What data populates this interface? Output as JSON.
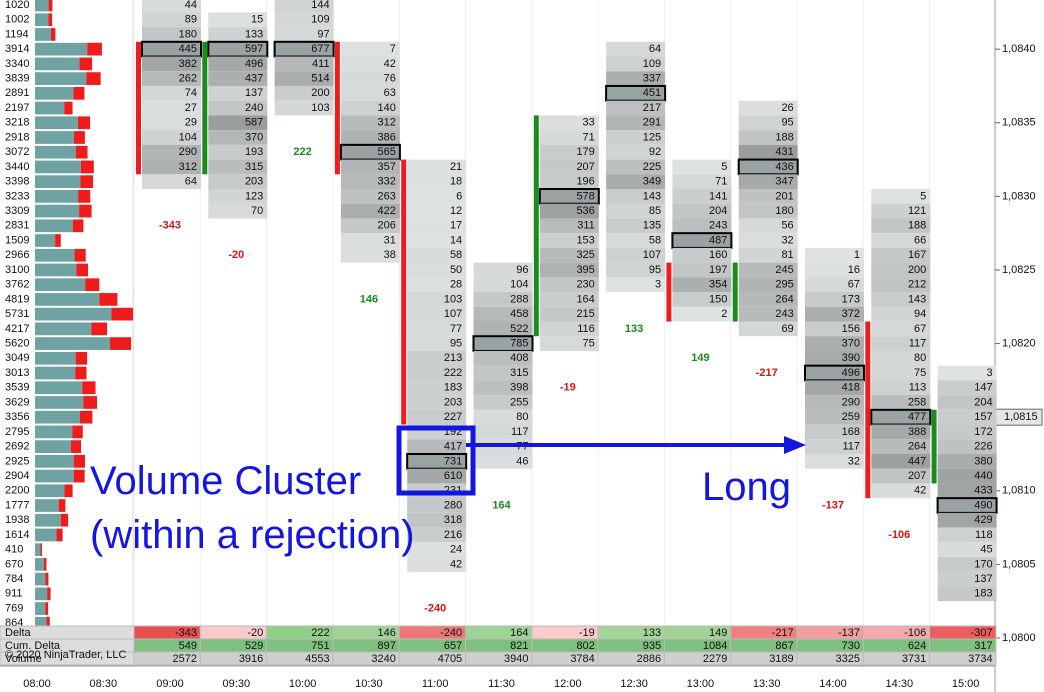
{
  "chart_data": {
    "type": "footprint",
    "ylim": [
      1.08,
      1.0843
    ],
    "row_step": 0.0001,
    "price_axis": {
      "ticks": [
        {
          "value": 1.084,
          "label": "1,0840"
        },
        {
          "value": 1.0835,
          "label": "1,0835"
        },
        {
          "value": 1.083,
          "label": "1,0830"
        },
        {
          "value": 1.0825,
          "label": "1,0825"
        },
        {
          "value": 1.082,
          "label": "1,0820"
        },
        {
          "value": 1.081,
          "label": "1,0810"
        },
        {
          "value": 1.0805,
          "label": "1,0805"
        },
        {
          "value": 1.08,
          "label": "1,0800"
        }
      ],
      "current": {
        "value": 1.0815,
        "label": "1,0815"
      }
    },
    "profile": {
      "first_price": 1.0843,
      "values": [
        1020,
        1002,
        1194,
        3914,
        3340,
        3839,
        2891,
        2197,
        3218,
        2918,
        3072,
        3440,
        3398,
        3233,
        3309,
        2831,
        1509,
        2966,
        3100,
        3762,
        4819,
        5731,
        4217,
        5620,
        3049,
        3013,
        3539,
        3629,
        3356,
        2795,
        2692,
        2925,
        2904,
        2200,
        1777,
        1938,
        1614,
        410,
        670,
        784,
        911,
        769,
        864
      ]
    },
    "x_labels": [
      "08:00",
      "08:30"
    ],
    "columns": [
      {
        "time": "09:00",
        "first_price": 1.0843,
        "values": [
          44,
          89,
          180,
          445,
          382,
          262,
          74,
          27,
          29,
          104,
          290,
          312,
          64
        ],
        "delta": -343,
        "cum_delta": 549,
        "volume": 2572
      },
      {
        "time": "09:30",
        "first_price": 1.0842,
        "values": [
          15,
          133,
          597,
          496,
          437,
          137,
          240,
          587,
          370,
          193,
          315,
          203,
          123,
          70
        ],
        "delta": -20,
        "cum_delta": 529,
        "volume": 3916
      },
      {
        "time": "10:00",
        "first_price": 1.0843,
        "values": [
          144,
          109,
          97,
          677,
          411,
          514,
          200,
          103
        ],
        "delta": 222,
        "cum_delta": 751,
        "volume": 4553
      },
      {
        "time": "10:30",
        "first_price": 1.084,
        "values": [
          7,
          42,
          76,
          63,
          140,
          312,
          386,
          565,
          357,
          332,
          263,
          422,
          206,
          31,
          38
        ],
        "delta": 146,
        "cum_delta": 897,
        "volume": 3240
      },
      {
        "time": "11:00",
        "first_price": 1.0832,
        "values": [
          21,
          18,
          6,
          12,
          17,
          14,
          58,
          50,
          28,
          103,
          107,
          77,
          95,
          213,
          222,
          183,
          203,
          227,
          192,
          417,
          731,
          610,
          231,
          280,
          318,
          216,
          24,
          42
        ],
        "delta": -240,
        "cum_delta": 657,
        "volume": 4705
      },
      {
        "time": "11:30",
        "first_price": 1.0825,
        "values": [
          96,
          104,
          288,
          458,
          522,
          785,
          408,
          315,
          398,
          255,
          80,
          117,
          77,
          46
        ],
        "delta": 164,
        "cum_delta": 821,
        "volume": 3940
      },
      {
        "time": "12:00",
        "first_price": 1.0835,
        "values": [
          33,
          71,
          179,
          207,
          196,
          578,
          536,
          311,
          153,
          325,
          395,
          230,
          164,
          215,
          116,
          75
        ],
        "delta": -19,
        "cum_delta": 802,
        "volume": 3784
      },
      {
        "time": "12:30",
        "first_price": 1.084,
        "values": [
          64,
          109,
          337,
          451,
          217,
          291,
          125,
          92,
          225,
          349,
          143,
          85,
          135,
          58,
          107,
          95,
          3
        ],
        "delta": 133,
        "cum_delta": 935,
        "volume": 2886
      },
      {
        "time": "13:00",
        "first_price": 1.0832,
        "values": [
          5,
          71,
          141,
          204,
          243,
          487,
          160,
          197,
          354,
          150,
          2
        ],
        "delta": 149,
        "cum_delta": 1084,
        "volume": 2279
      },
      {
        "time": "13:30",
        "first_price": 1.0836,
        "values": [
          26,
          95,
          188,
          431,
          436,
          347,
          201,
          180,
          56,
          32,
          81,
          245,
          295,
          264,
          243,
          69
        ],
        "delta": -217,
        "cum_delta": 867,
        "volume": 3189
      },
      {
        "time": "14:00",
        "first_price": 1.0826,
        "values": [
          1,
          16,
          67,
          173,
          372,
          156,
          370,
          390,
          496,
          418,
          290,
          259,
          168,
          117,
          32
        ],
        "delta": -137,
        "cum_delta": 730,
        "volume": 3325
      },
      {
        "time": "14:30",
        "first_price": 1.083,
        "values": [
          5,
          121,
          188,
          66,
          167,
          200,
          212,
          143,
          94,
          67,
          117,
          80,
          75,
          113,
          258,
          477,
          388,
          264,
          447,
          207,
          42
        ],
        "delta": -106,
        "cum_delta": 624,
        "volume": 3731
      },
      {
        "time": "15:00",
        "first_price": 1.0818,
        "values": [
          3,
          147,
          204,
          157,
          172,
          226,
          380,
          440,
          433,
          490,
          429,
          118,
          45,
          170,
          137,
          183
        ],
        "delta": -307,
        "cum_delta": 317,
        "volume": 3734
      }
    ],
    "table_labels": {
      "delta": "Delta",
      "cum_delta": "Cum. Delta",
      "volume": "Volume"
    },
    "copyright": "© 2020 NinjaTrader, LLC",
    "annotations": {
      "cluster_line1": "Volume Cluster",
      "cluster_line2": "(within a rejection)",
      "long": "Long"
    }
  }
}
